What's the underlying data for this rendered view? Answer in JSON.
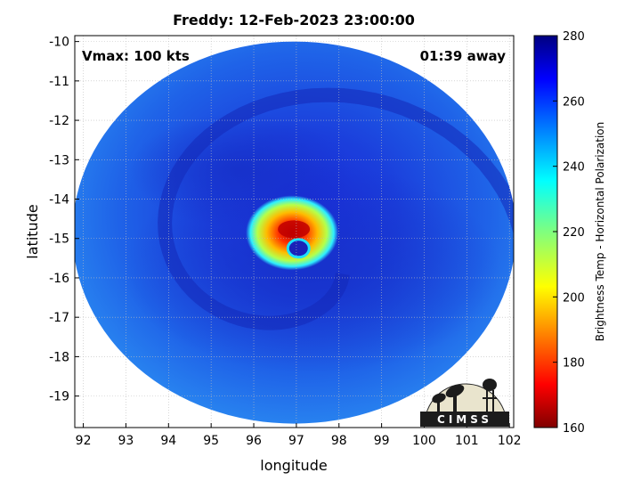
{
  "chart_data": {
    "type": "heatmap",
    "title": "Freddy: 12-Feb-2023 23:00:00",
    "xlabel": "longitude",
    "ylabel": "latitude",
    "xlim": [
      91.8,
      102.1
    ],
    "ylim": [
      -19.8,
      -9.85
    ],
    "x_ticks": [
      92,
      93,
      94,
      95,
      96,
      97,
      98,
      99,
      100,
      101,
      102
    ],
    "y_ticks": [
      -10,
      -11,
      -12,
      -13,
      -14,
      -15,
      -16,
      -17,
      -18,
      -19
    ],
    "grid": true,
    "annotations": {
      "vmax": "Vmax: 100 kts",
      "time_away": "01:39 away"
    },
    "storm": {
      "swath_center": [
        96.95,
        -14.85
      ],
      "eye_center": [
        97.05,
        -15.25
      ],
      "coldest_core_center": [
        96.9,
        -14.72
      ]
    },
    "colorbar": {
      "label": "Brightness Temp - Horizontal Polarization",
      "min": 160,
      "max": 280,
      "ticks": [
        160,
        180,
        200,
        220,
        240,
        260,
        280
      ],
      "colormap": "jet"
    },
    "logo": "CIMSS"
  }
}
